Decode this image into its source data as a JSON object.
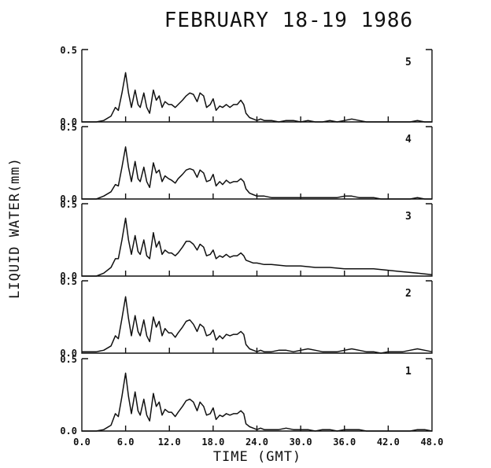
{
  "chart_data": {
    "type": "line",
    "title": "FEBRUARY 18-19 1986",
    "xlabel": "TIME (GMT)",
    "ylabel": "LIQUID WATER(mm)",
    "xlim": [
      0,
      48
    ],
    "ylim": [
      0,
      0.5
    ],
    "x_tick_labels": [
      "0.0",
      "6.0",
      "12.0",
      "18.0",
      "24.0",
      "30.0",
      "36.0",
      "42.0",
      "48.0"
    ],
    "y_tick_labels": [
      "0.0",
      "0.5"
    ],
    "grid": false,
    "panels": [
      {
        "label": "5",
        "x": [
          0,
          2,
          3,
          4,
          4.6,
          5,
          5.5,
          6,
          6.4,
          6.8,
          7.3,
          7.7,
          8,
          8.5,
          8.9,
          9.3,
          9.8,
          10.2,
          10.6,
          11,
          11.4,
          11.9,
          12.3,
          12.8,
          13.2,
          13.8,
          14.3,
          14.8,
          15.3,
          15.8,
          16.2,
          16.7,
          17.1,
          17.6,
          18,
          18.4,
          18.9,
          19.3,
          19.8,
          20.3,
          20.8,
          21.3,
          21.8,
          22.2,
          22.5,
          23,
          23.5,
          24,
          24.5,
          25,
          26,
          27,
          28,
          29,
          30,
          31,
          32,
          33,
          34,
          35,
          36,
          37,
          38,
          39,
          40,
          41,
          42,
          43,
          44,
          45,
          46,
          47,
          48
        ],
        "y": [
          0,
          0,
          0.01,
          0.04,
          0.1,
          0.08,
          0.2,
          0.34,
          0.2,
          0.1,
          0.22,
          0.12,
          0.1,
          0.2,
          0.1,
          0.06,
          0.22,
          0.15,
          0.18,
          0.1,
          0.14,
          0.12,
          0.12,
          0.1,
          0.12,
          0.15,
          0.18,
          0.2,
          0.19,
          0.14,
          0.2,
          0.18,
          0.1,
          0.12,
          0.16,
          0.08,
          0.11,
          0.1,
          0.12,
          0.1,
          0.12,
          0.12,
          0.15,
          0.12,
          0.06,
          0.03,
          0.02,
          0.01,
          0.02,
          0.01,
          0.01,
          0,
          0.01,
          0.01,
          0,
          0.01,
          0,
          0,
          0.01,
          0,
          0.01,
          0.02,
          0.01,
          0,
          0,
          0,
          0,
          0,
          0,
          0,
          0.01,
          0,
          0
        ]
      },
      {
        "label": "4",
        "x": [
          0,
          2,
          3,
          4,
          4.6,
          5,
          5.5,
          6,
          6.4,
          6.8,
          7.3,
          7.7,
          8,
          8.5,
          8.9,
          9.3,
          9.8,
          10.2,
          10.6,
          11,
          11.4,
          11.9,
          12.3,
          12.8,
          13.2,
          13.8,
          14.3,
          14.8,
          15.3,
          15.8,
          16.2,
          16.7,
          17.1,
          17.6,
          18,
          18.4,
          18.9,
          19.3,
          19.8,
          20.3,
          20.8,
          21.3,
          21.8,
          22.2,
          22.5,
          23,
          23.5,
          24,
          24.5,
          25,
          26,
          27,
          28,
          29,
          30,
          31,
          32,
          33,
          34,
          35,
          36,
          37,
          38,
          39,
          40,
          41,
          42,
          43,
          44,
          45,
          46,
          47,
          48
        ],
        "y": [
          0,
          0,
          0.02,
          0.05,
          0.1,
          0.09,
          0.22,
          0.36,
          0.22,
          0.12,
          0.26,
          0.14,
          0.12,
          0.22,
          0.12,
          0.08,
          0.25,
          0.18,
          0.2,
          0.12,
          0.16,
          0.14,
          0.13,
          0.11,
          0.14,
          0.17,
          0.2,
          0.21,
          0.2,
          0.15,
          0.2,
          0.18,
          0.12,
          0.13,
          0.17,
          0.09,
          0.12,
          0.1,
          0.13,
          0.11,
          0.12,
          0.12,
          0.14,
          0.12,
          0.07,
          0.04,
          0.03,
          0.02,
          0.02,
          0.02,
          0.01,
          0.01,
          0.01,
          0.01,
          0.01,
          0.01,
          0.01,
          0.01,
          0.01,
          0.01,
          0.02,
          0.02,
          0.01,
          0.01,
          0.01,
          0,
          0,
          0,
          0,
          0,
          0.01,
          0,
          0
        ]
      },
      {
        "label": "3",
        "x": [
          0,
          2,
          3,
          4,
          4.6,
          5,
          5.5,
          6,
          6.4,
          6.8,
          7.3,
          7.7,
          8,
          8.5,
          8.9,
          9.3,
          9.8,
          10.2,
          10.6,
          11,
          11.4,
          11.9,
          12.3,
          12.8,
          13.2,
          13.8,
          14.3,
          14.8,
          15.3,
          15.8,
          16.2,
          16.7,
          17.1,
          17.6,
          18,
          18.4,
          18.9,
          19.3,
          19.8,
          20.3,
          20.8,
          21.3,
          21.8,
          22.2,
          22.5,
          23,
          23.5,
          24,
          25,
          26,
          28,
          30,
          32,
          34,
          36,
          38,
          40,
          42,
          44,
          46,
          48
        ],
        "y": [
          0,
          0,
          0.02,
          0.06,
          0.12,
          0.12,
          0.25,
          0.4,
          0.25,
          0.15,
          0.28,
          0.17,
          0.15,
          0.25,
          0.14,
          0.12,
          0.3,
          0.2,
          0.24,
          0.15,
          0.18,
          0.16,
          0.16,
          0.14,
          0.16,
          0.2,
          0.24,
          0.24,
          0.22,
          0.18,
          0.22,
          0.2,
          0.14,
          0.15,
          0.18,
          0.12,
          0.14,
          0.13,
          0.15,
          0.13,
          0.14,
          0.14,
          0.16,
          0.14,
          0.11,
          0.1,
          0.09,
          0.09,
          0.08,
          0.08,
          0.07,
          0.07,
          0.06,
          0.06,
          0.05,
          0.05,
          0.05,
          0.04,
          0.03,
          0.02,
          0.01
        ]
      },
      {
        "label": "2",
        "x": [
          0,
          2,
          3,
          4,
          4.6,
          5,
          5.5,
          6,
          6.4,
          6.8,
          7.3,
          7.7,
          8,
          8.5,
          8.9,
          9.3,
          9.8,
          10.2,
          10.6,
          11,
          11.4,
          11.9,
          12.3,
          12.8,
          13.2,
          13.8,
          14.3,
          14.8,
          15.3,
          15.8,
          16.2,
          16.7,
          17.1,
          17.6,
          18,
          18.4,
          18.9,
          19.3,
          19.8,
          20.3,
          20.8,
          21.3,
          21.8,
          22.2,
          22.5,
          23,
          23.5,
          24,
          24.5,
          25,
          26,
          27,
          28,
          29,
          30,
          31,
          32,
          33,
          34,
          35,
          36,
          37,
          38,
          39,
          40,
          41,
          42,
          43,
          44,
          45,
          46,
          47,
          48
        ],
        "y": [
          0.01,
          0.01,
          0.02,
          0.05,
          0.12,
          0.1,
          0.24,
          0.39,
          0.24,
          0.12,
          0.26,
          0.15,
          0.12,
          0.23,
          0.12,
          0.08,
          0.25,
          0.18,
          0.22,
          0.12,
          0.17,
          0.14,
          0.14,
          0.11,
          0.14,
          0.18,
          0.22,
          0.23,
          0.2,
          0.15,
          0.2,
          0.18,
          0.12,
          0.13,
          0.16,
          0.09,
          0.12,
          0.1,
          0.13,
          0.12,
          0.13,
          0.13,
          0.15,
          0.13,
          0.06,
          0.03,
          0.02,
          0.01,
          0.02,
          0.01,
          0.01,
          0.02,
          0.02,
          0.01,
          0.02,
          0.03,
          0.02,
          0.01,
          0.01,
          0.01,
          0.02,
          0.03,
          0.02,
          0.01,
          0.01,
          0,
          0.01,
          0.01,
          0.01,
          0.02,
          0.03,
          0.02,
          0.01
        ]
      },
      {
        "label": "1",
        "x": [
          0,
          2,
          3,
          4,
          4.6,
          5,
          5.5,
          6,
          6.4,
          6.8,
          7.3,
          7.7,
          8,
          8.5,
          8.9,
          9.3,
          9.8,
          10.2,
          10.6,
          11,
          11.4,
          11.9,
          12.3,
          12.8,
          13.2,
          13.8,
          14.3,
          14.8,
          15.3,
          15.8,
          16.2,
          16.7,
          17.1,
          17.6,
          18,
          18.4,
          18.9,
          19.3,
          19.8,
          20.3,
          20.8,
          21.3,
          21.8,
          22.2,
          22.5,
          23,
          23.5,
          24,
          24.5,
          25,
          26,
          27,
          28,
          29,
          30,
          31,
          32,
          33,
          34,
          35,
          36,
          37,
          38,
          39,
          40,
          41,
          42,
          43,
          44,
          45,
          46,
          47,
          48
        ],
        "y": [
          0,
          0,
          0.01,
          0.04,
          0.12,
          0.1,
          0.24,
          0.4,
          0.24,
          0.12,
          0.27,
          0.14,
          0.11,
          0.22,
          0.11,
          0.07,
          0.26,
          0.17,
          0.2,
          0.11,
          0.15,
          0.13,
          0.13,
          0.1,
          0.13,
          0.17,
          0.21,
          0.22,
          0.2,
          0.14,
          0.2,
          0.17,
          0.11,
          0.12,
          0.16,
          0.08,
          0.11,
          0.1,
          0.12,
          0.11,
          0.12,
          0.12,
          0.14,
          0.12,
          0.05,
          0.03,
          0.02,
          0.01,
          0.02,
          0.01,
          0.01,
          0.01,
          0.02,
          0.01,
          0.01,
          0.01,
          0,
          0.01,
          0.01,
          0,
          0.01,
          0.01,
          0.01,
          0,
          0,
          0,
          0,
          0,
          0,
          0,
          0.01,
          0.01,
          0
        ]
      }
    ]
  }
}
